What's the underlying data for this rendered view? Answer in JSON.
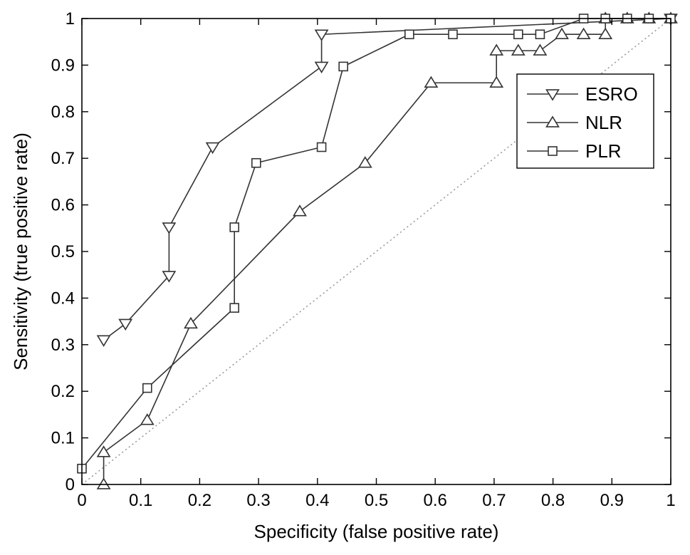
{
  "chart_data": {
    "type": "line",
    "title": "",
    "xlabel": "Specificity (false positive rate)",
    "ylabel": "Sensitivity (true positive rate)",
    "xlim": [
      0,
      1
    ],
    "ylim": [
      0,
      1
    ],
    "xticks": [
      0,
      0.1,
      0.2,
      0.3,
      0.4,
      0.5,
      0.6,
      0.7,
      0.8,
      0.9,
      1
    ],
    "yticks": [
      0,
      0.1,
      0.2,
      0.3,
      0.4,
      0.5,
      0.6,
      0.7,
      0.8,
      0.9,
      1
    ],
    "xtick_labels": [
      "0",
      "0.1",
      "0.2",
      "0.3",
      "0.4",
      "0.5",
      "0.6",
      "0.7",
      "0.8",
      "0.9",
      "1"
    ],
    "ytick_labels": [
      "0",
      "0.1",
      "0.2",
      "0.3",
      "0.4",
      "0.5",
      "0.6",
      "0.7",
      "0.8",
      "0.9",
      "1"
    ],
    "grid": false,
    "legend_position": "top-right",
    "reference_line": {
      "style": "dotted",
      "from": [
        0,
        0
      ],
      "to": [
        1,
        1
      ],
      "color": "#999999"
    },
    "series": [
      {
        "name": "ESRO",
        "marker": "triangle-down",
        "x": [
          0.037,
          0.074,
          0.148,
          0.148,
          0.222,
          0.407,
          0.407,
          1.0
        ],
        "y": [
          0.31,
          0.345,
          0.448,
          0.552,
          0.724,
          0.897,
          0.966,
          1.0
        ]
      },
      {
        "name": "NLR",
        "marker": "triangle-up",
        "x": [
          0.037,
          0.037,
          0.111,
          0.185,
          0.37,
          0.481,
          0.593,
          0.704,
          0.704,
          0.741,
          0.778,
          0.815,
          0.852,
          0.889,
          0.889,
          0.926,
          0.963,
          1.0
        ],
        "y": [
          0.0,
          0.069,
          0.138,
          0.345,
          0.586,
          0.69,
          0.862,
          0.862,
          0.931,
          0.931,
          0.931,
          0.966,
          0.966,
          0.966,
          1.0,
          1.0,
          1.0,
          1.0
        ],
        "markers_x": [
          0.037,
          0.037,
          0.111,
          0.185,
          0.37,
          0.481,
          0.593,
          0.704,
          0.704,
          0.741,
          0.778,
          0.815,
          0.852,
          0.889,
          0.889,
          0.926,
          0.963,
          1.0
        ],
        "markers_y": [
          0.0,
          0.069,
          0.138,
          0.345,
          0.586,
          0.69,
          0.862,
          0.862,
          0.931,
          0.931,
          0.931,
          0.966,
          0.966,
          0.966,
          1.0,
          1.0,
          1.0,
          1.0
        ]
      },
      {
        "name": "PLR",
        "marker": "square",
        "x": [
          0.0,
          0.111,
          0.259,
          0.259,
          0.296,
          0.407,
          0.444,
          0.556,
          0.63,
          0.741,
          0.778,
          0.852,
          0.889,
          0.926,
          0.963,
          1.0
        ],
        "y": [
          0.034,
          0.207,
          0.379,
          0.552,
          0.69,
          0.724,
          0.897,
          0.966,
          0.966,
          0.966,
          0.966,
          1.0,
          1.0,
          1.0,
          1.0,
          1.0
        ]
      }
    ]
  },
  "colors": {
    "line": "#333333",
    "axis": "#000000",
    "reference": "#999999",
    "background": "#ffffff"
  }
}
